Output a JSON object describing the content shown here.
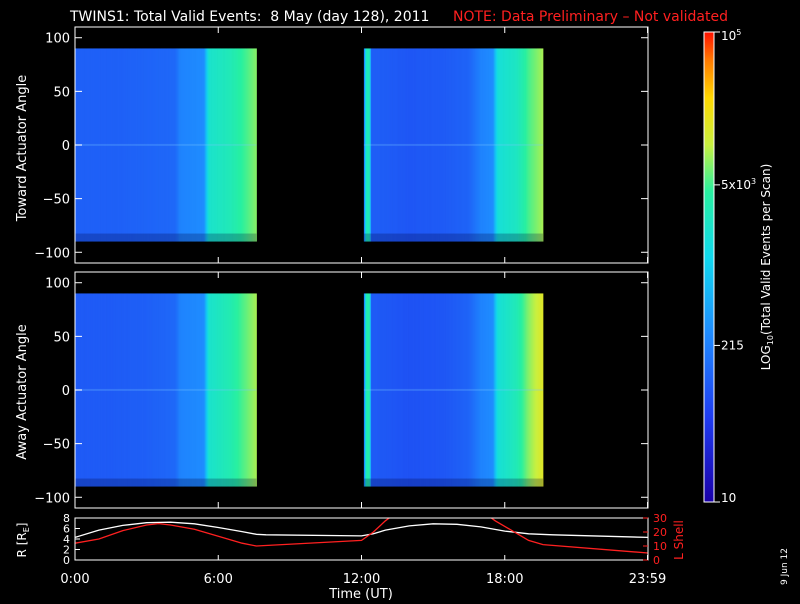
{
  "title": {
    "main": "TWINS1: Total Valid Events:  8 May (day 128), 2011",
    "note": "NOTE: Data Preliminary – Not validated",
    "note_color": "#ff2020"
  },
  "date_stamp": "9 Jun 12",
  "chart_data": [
    {
      "type": "heatmap",
      "name": "toward",
      "ylabel": "Toward Actuator Angle",
      "ylim": [
        -110,
        110
      ],
      "yticks": [
        100,
        50,
        0,
        -50,
        -100
      ],
      "xlim": [
        0,
        24
      ],
      "data_range": [
        -90,
        90
      ],
      "segments": [
        {
          "start": 0.0,
          "end": 7.6
        },
        {
          "start": 12.1,
          "end": 19.6
        }
      ],
      "profile": [
        {
          "t": 0.0,
          "level": 0.26
        },
        {
          "t": 1.5,
          "level": 0.26
        },
        {
          "t": 3.0,
          "level": 0.27
        },
        {
          "t": 4.2,
          "level": 0.28
        },
        {
          "t": 4.4,
          "level": 0.34
        },
        {
          "t": 5.4,
          "level": 0.36
        },
        {
          "t": 5.6,
          "level": 0.58
        },
        {
          "t": 6.5,
          "level": 0.62
        },
        {
          "t": 7.2,
          "level": 0.68
        },
        {
          "t": 7.6,
          "level": 0.72
        },
        {
          "t": 12.1,
          "level": 0.28
        },
        {
          "t": 12.2,
          "level": 0.62
        },
        {
          "t": 12.35,
          "level": 0.62
        },
        {
          "t": 12.4,
          "level": 0.26
        },
        {
          "t": 14.0,
          "level": 0.24
        },
        {
          "t": 15.5,
          "level": 0.25
        },
        {
          "t": 16.5,
          "level": 0.27
        },
        {
          "t": 17.0,
          "level": 0.34
        },
        {
          "t": 17.5,
          "level": 0.36
        },
        {
          "t": 17.7,
          "level": 0.56
        },
        {
          "t": 18.5,
          "level": 0.6
        },
        {
          "t": 19.0,
          "level": 0.68
        },
        {
          "t": 19.6,
          "level": 0.74
        }
      ]
    },
    {
      "type": "heatmap",
      "name": "away",
      "ylabel": "Away Actuator Angle",
      "ylim": [
        -110,
        110
      ],
      "yticks": [
        100,
        50,
        0,
        -50,
        -100
      ],
      "xlim": [
        0,
        24
      ],
      "data_range": [
        -90,
        90
      ],
      "segments": [
        {
          "start": 0.0,
          "end": 7.6
        },
        {
          "start": 12.1,
          "end": 19.6
        }
      ],
      "profile": [
        {
          "t": 0.0,
          "level": 0.25
        },
        {
          "t": 1.5,
          "level": 0.25
        },
        {
          "t": 3.0,
          "level": 0.26
        },
        {
          "t": 4.2,
          "level": 0.28
        },
        {
          "t": 4.4,
          "level": 0.34
        },
        {
          "t": 5.4,
          "level": 0.36
        },
        {
          "t": 5.6,
          "level": 0.58
        },
        {
          "t": 6.5,
          "level": 0.63
        },
        {
          "t": 7.2,
          "level": 0.7
        },
        {
          "t": 7.6,
          "level": 0.74
        },
        {
          "t": 12.1,
          "level": 0.28
        },
        {
          "t": 12.2,
          "level": 0.64
        },
        {
          "t": 12.35,
          "level": 0.64
        },
        {
          "t": 12.4,
          "level": 0.25
        },
        {
          "t": 14.0,
          "level": 0.23
        },
        {
          "t": 15.5,
          "level": 0.24
        },
        {
          "t": 16.5,
          "level": 0.27
        },
        {
          "t": 17.0,
          "level": 0.34
        },
        {
          "t": 17.5,
          "level": 0.36
        },
        {
          "t": 17.7,
          "level": 0.56
        },
        {
          "t": 18.5,
          "level": 0.62
        },
        {
          "t": 19.0,
          "level": 0.72
        },
        {
          "t": 19.6,
          "level": 0.8
        }
      ]
    },
    {
      "type": "line",
      "name": "orbit",
      "ylabel_left": "R [R",
      "ylabel_left_sub": "E",
      "ylabel_left_close": "]",
      "ylabel_right": "L Shell",
      "ylim_left": [
        0,
        8
      ],
      "yticks_left": [
        8,
        6,
        4,
        2,
        0
      ],
      "ylim_right": [
        0,
        30
      ],
      "yticks_right": [
        30,
        20,
        10,
        0
      ],
      "xlim": [
        0,
        24
      ],
      "xticks": [
        {
          "value": 0,
          "label": "0:00"
        },
        {
          "value": 6,
          "label": "6:00"
        },
        {
          "value": 12,
          "label": "12:00"
        },
        {
          "value": 18,
          "label": "18:00"
        },
        {
          "value": 23.98,
          "label": "23:59"
        }
      ],
      "xlabel": "Time (UT)",
      "series": [
        {
          "axis": "left",
          "color": "#ffffff",
          "points": [
            [
              0,
              4.3
            ],
            [
              1,
              5.7
            ],
            [
              2,
              6.6
            ],
            [
              3,
              7.1
            ],
            [
              4,
              7.2
            ],
            [
              5,
              6.9
            ],
            [
              6,
              6.2
            ],
            [
              7,
              5.4
            ],
            [
              7.6,
              4.9
            ],
            [
              8,
              4.8
            ],
            [
              12,
              4.6
            ],
            [
              12.5,
              5.0
            ],
            [
              13,
              5.7
            ],
            [
              14,
              6.5
            ],
            [
              15,
              6.9
            ],
            [
              16,
              6.8
            ],
            [
              17,
              6.3
            ],
            [
              18,
              5.5
            ],
            [
              19,
              5.0
            ],
            [
              20,
              4.8
            ],
            [
              24,
              4.3
            ]
          ]
        },
        {
          "axis": "right",
          "color": "#ff2020",
          "points": [
            [
              0,
              12
            ],
            [
              1,
              15
            ],
            [
              2,
              21
            ],
            [
              3,
              25
            ],
            [
              3.5,
              26
            ],
            [
              4,
              25
            ],
            [
              5,
              22
            ],
            [
              6,
              17
            ],
            [
              7,
              12
            ],
            [
              7.6,
              10
            ],
            [
              12,
              14
            ],
            [
              12.5,
              20
            ],
            [
              13,
              28
            ],
            [
              13.4,
              33
            ],
            [
              17.2,
              33
            ],
            [
              17.6,
              28
            ],
            [
              18,
              24
            ],
            [
              19,
              14
            ],
            [
              19.6,
              11
            ],
            [
              24,
              5
            ]
          ]
        }
      ]
    }
  ],
  "colorbar": {
    "label": "LOG",
    "label_sub": "10",
    "label_rest": "(Total Valid Events per Scan)",
    "scale": "log",
    "range": [
      10,
      100000
    ],
    "ticks": [
      {
        "value": 10,
        "label": "10"
      },
      {
        "value": 215,
        "label": "215"
      },
      {
        "value": 5000,
        "label": "5x10",
        "exp": "3"
      },
      {
        "value": 100000,
        "label": "10",
        "exp": "5"
      }
    ]
  }
}
